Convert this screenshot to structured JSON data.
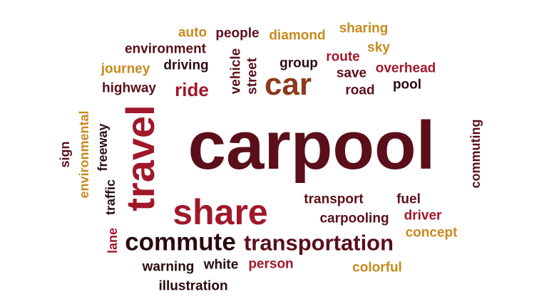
{
  "palette": {
    "darkred": "#5a0f1a",
    "red": "#a0182a",
    "brown": "#8b3a1c",
    "gold": "#c88a1e",
    "black": "#2a0b10"
  },
  "words": [
    {
      "text": "carpool"
    },
    {
      "text": "travel"
    },
    {
      "text": "share"
    },
    {
      "text": "commute"
    },
    {
      "text": "transportation"
    },
    {
      "text": "car"
    },
    {
      "text": "ride"
    },
    {
      "text": "auto"
    },
    {
      "text": "people"
    },
    {
      "text": "diamond"
    },
    {
      "text": "sharing"
    },
    {
      "text": "sky"
    },
    {
      "text": "environment"
    },
    {
      "text": "journey"
    },
    {
      "text": "driving"
    },
    {
      "text": "vehicle"
    },
    {
      "text": "street"
    },
    {
      "text": "group"
    },
    {
      "text": "route"
    },
    {
      "text": "save"
    },
    {
      "text": "overhead"
    },
    {
      "text": "highway"
    },
    {
      "text": "road"
    },
    {
      "text": "pool"
    },
    {
      "text": "environmental"
    },
    {
      "text": "freeway"
    },
    {
      "text": "sign"
    },
    {
      "text": "traffic"
    },
    {
      "text": "lane"
    },
    {
      "text": "commuting"
    },
    {
      "text": "transport"
    },
    {
      "text": "fuel"
    },
    {
      "text": "carpooling"
    },
    {
      "text": "driver"
    },
    {
      "text": "concept"
    },
    {
      "text": "warning"
    },
    {
      "text": "white"
    },
    {
      "text": "person"
    },
    {
      "text": "colorful"
    },
    {
      "text": "illustration"
    }
  ]
}
